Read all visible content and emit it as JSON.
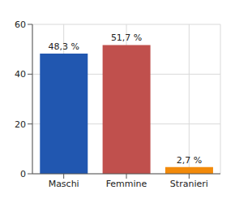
{
  "chart_data": {
    "type": "bar",
    "categories": [
      "Maschi",
      "Femmine",
      "Stranieri"
    ],
    "values": [
      48.3,
      51.7,
      2.7
    ],
    "value_labels": [
      "48,3 %",
      "51,7 %",
      "2,7 %"
    ],
    "colors": [
      "#2157b0",
      "#c0504d",
      "#f28a0a"
    ],
    "ylim": [
      0,
      60
    ],
    "yticks": [
      0,
      20,
      40,
      60
    ],
    "grid": true,
    "data_labels": true
  }
}
